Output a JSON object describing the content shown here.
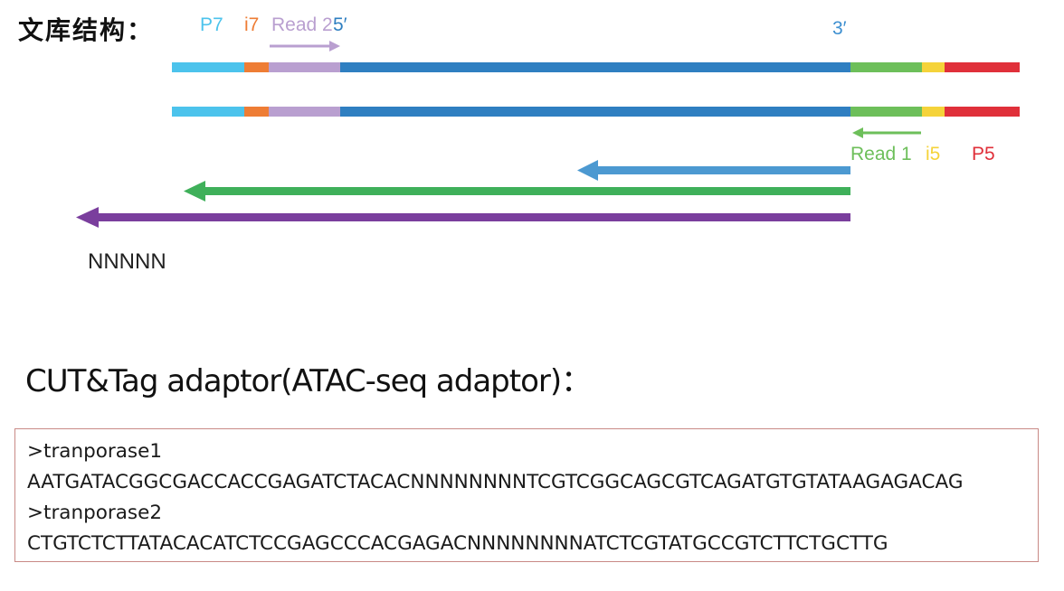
{
  "header": {
    "title": "文库结构："
  },
  "labels": {
    "p7": "P7",
    "i7": "i7",
    "read2": "Read 2",
    "five_prime": "5′",
    "three_prime": "3′",
    "read1": "Read 1",
    "i5": "i5",
    "p5": "P5",
    "nnnnn": "NNNNN"
  },
  "colors": {
    "p7": "#4cc3ec",
    "i7": "#ee7d35",
    "read2": "#b99fd0",
    "insert": "#2f7fc1",
    "read1": "#6dbf5a",
    "i5": "#f5d33a",
    "p5": "#e0303a",
    "arrow_blue": "#4c99d1",
    "arrow_green": "#3fb05a",
    "arrow_purple": "#7a3e9d"
  },
  "adaptor": {
    "title": "CUT&Tag adaptor(ATAC-seq adaptor)：",
    "lines": [
      ">tranporase1",
      "AATGATACGGCGACCACCGAGATCTACACNNNNNNNNTCGTCGGCAGCGTCAGATGTGTATAAGAGACAG",
      ">tranporase2",
      "CTGTCTCTTATACACATCTCCGAGCCCACGAGACNNNNNNNNATCTCGTATGCCGTCTTCTGCTTG"
    ]
  }
}
